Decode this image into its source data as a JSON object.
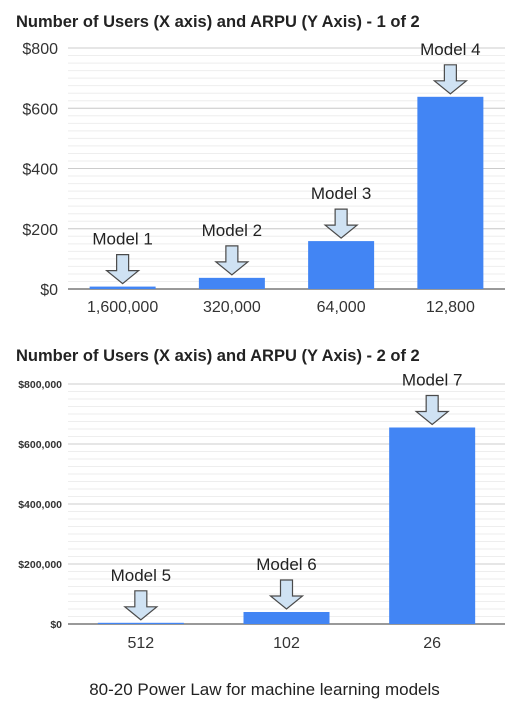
{
  "chart_data": [
    {
      "type": "bar",
      "title": "Number of Users (X axis)  and ARPU (Y Axis) - 1 of 2",
      "categories": [
        "1,600,000",
        "320,000",
        "64,000",
        "12,800"
      ],
      "values": [
        8,
        37,
        159,
        638
      ],
      "annotations": [
        "Model 1",
        "Model 2",
        "Model 3",
        "Model 4"
      ],
      "yticks": [
        "$0",
        "$200",
        "$400",
        "$600",
        "$800"
      ],
      "ylim": [
        0,
        800
      ],
      "grid": true,
      "color": "#4285f4"
    },
    {
      "type": "bar",
      "title": "Number of Users (X axis)  and ARPU (Y Axis) - 2 of 2",
      "categories": [
        "512",
        "102",
        "26"
      ],
      "values": [
        4000,
        40000,
        655000
      ],
      "annotations": [
        "Model 5",
        "Model 6",
        "Model 7"
      ],
      "yticks": [
        "$0",
        "$200,000",
        "$400,000",
        "$600,000",
        "$800,000"
      ],
      "ylim": [
        0,
        800000
      ],
      "grid": true,
      "color": "#4285f4"
    }
  ],
  "caption": "80-20 Power Law for machine learning models"
}
